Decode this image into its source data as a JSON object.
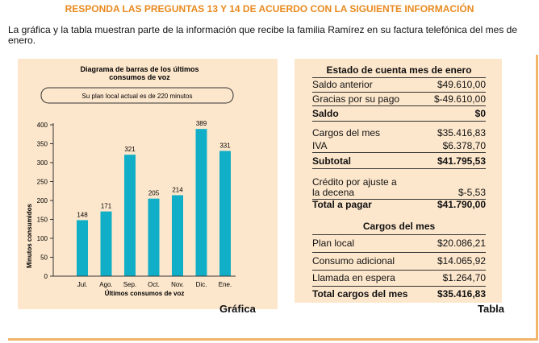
{
  "header": {
    "title": "RESPONDA LAS PREGUNTAS 13 Y 14 DE ACUERDO CON LA SIGUIENTE INFORMACIÓN"
  },
  "intro": {
    "text": "La gráfica y la tabla muestran parte de la información que recibe la familia Ramírez en su factura telefónica del mes de enero."
  },
  "chart_data": {
    "type": "bar",
    "title_line1": "Diagrama de barras de los últimos",
    "title_line2": "consumos de voz",
    "note": "Su plan local actual es de 220 minutos",
    "categories": [
      "Jul.",
      "Ago.",
      "Sep.",
      "Oct.",
      "Nov.",
      "Dic.",
      "Ene."
    ],
    "values": [
      148,
      171,
      321,
      205,
      214,
      389,
      331
    ],
    "xlabel": "Últimos consumos de voz",
    "ylabel": "Minutos consumidos",
    "ylim": [
      0,
      400
    ],
    "yticks": [
      0,
      50,
      100,
      150,
      200,
      250,
      300,
      350,
      400
    ],
    "bar_color": "#11afc7",
    "grid": false,
    "caption": "Gráfica"
  },
  "table": {
    "title": "Estado de cuenta mes de enero",
    "rows": [
      {
        "label": "Saldo anterior",
        "value": "$49.610,00"
      },
      {
        "label": "Gracias por su pago",
        "value": "$-49.610,00"
      },
      {
        "label": "Saldo",
        "value": "$0"
      },
      {
        "label": "Cargos del mes",
        "value": "$35.416,83"
      },
      {
        "label": "IVA",
        "value": "$6.378,70"
      },
      {
        "label": "Subtotal",
        "value": "$41.795,53"
      },
      {
        "label_line1": "Crédito por ajuste a",
        "label_line2": "la decena",
        "value": "$-5,53"
      },
      {
        "label": "Total a pagar",
        "value": "$41.790,00"
      }
    ],
    "charges_title": "Cargos del mes",
    "charges": [
      {
        "label": "Plan local",
        "value": "$20.086,21"
      },
      {
        "label": "Consumo adicional",
        "value": "$14.065,92"
      },
      {
        "label": "Llamada en espera",
        "value": "$1.264,70"
      },
      {
        "label": "Total cargos del mes",
        "value": "$35.416,83"
      }
    ],
    "caption": "Tabla"
  }
}
